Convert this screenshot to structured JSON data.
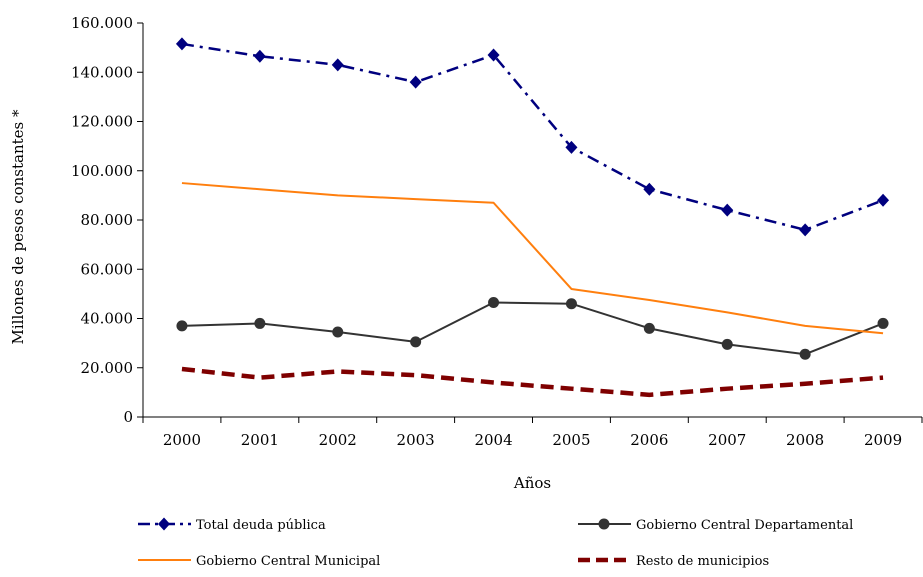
{
  "chart_data": {
    "type": "line",
    "xlabel": "Años",
    "ylabel": "Millones de pesos constantes *",
    "ylim": [
      0,
      160000
    ],
    "y_ticks": [
      "0",
      "20.000",
      "40.000",
      "60.000",
      "80.000",
      "100.000",
      "120.000",
      "140.000",
      "160.000"
    ],
    "categories": [
      "2000",
      "2001",
      "2002",
      "2003",
      "2004",
      "2005",
      "2006",
      "2007",
      "2008",
      "2009"
    ],
    "grid": false,
    "legend_position": "bottom",
    "series": [
      {
        "name": "Total deuda pública",
        "values": [
          151500,
          146500,
          143000,
          136000,
          147000,
          109500,
          92500,
          84000,
          76000,
          88000
        ],
        "color": "#00007f",
        "style": "dash-dot",
        "marker": "diamond"
      },
      {
        "name": "Gobierno Central Departamental",
        "values": [
          37000,
          38000,
          34500,
          30500,
          46500,
          46000,
          36000,
          29500,
          25500,
          38000
        ],
        "color": "#333333",
        "style": "solid",
        "marker": "circle"
      },
      {
        "name": "Gobierno Central Municipal",
        "values": [
          95000,
          92500,
          90000,
          88500,
          87000,
          52000,
          47500,
          42500,
          37000,
          34000
        ],
        "color": "#ff7f0e",
        "style": "solid",
        "marker": "none"
      },
      {
        "name": "Resto de municipios",
        "values": [
          19500,
          16000,
          18500,
          17000,
          14000,
          11500,
          9000,
          11500,
          13500,
          16000
        ],
        "color": "#7f0000",
        "style": "dashed-thick",
        "marker": "none"
      }
    ]
  }
}
